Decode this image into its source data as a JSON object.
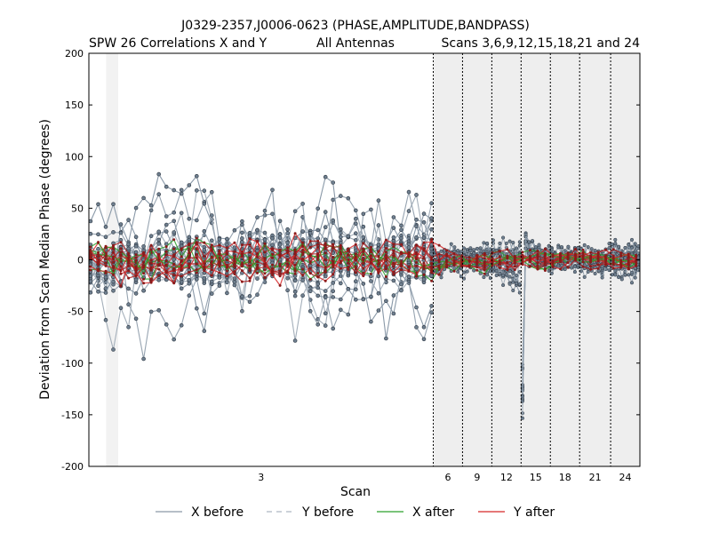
{
  "chart_data": {
    "type": "line",
    "title": "J0329-2357,J0006-0623 (PHASE,AMPLITUDE,BANDPASS)",
    "subtitle_left": "SPW 26 Correlations X and Y",
    "subtitle_center": "All Antennas",
    "subtitle_right": "Scans 3,6,9,12,15,18,21 and 24",
    "xlabel": "Scan",
    "ylabel": "Deviation from Scan Median Phase (degrees)",
    "ylim": [
      -200,
      200
    ],
    "yticks": [
      -200,
      -150,
      -100,
      -50,
      0,
      50,
      100,
      150,
      200
    ],
    "scans": [
      {
        "label": "3",
        "start": 0,
        "end": 100
      },
      {
        "label": "6",
        "start": 100,
        "end": 108.5
      },
      {
        "label": "9",
        "start": 108.5,
        "end": 117
      },
      {
        "label": "12",
        "start": 117,
        "end": 125.5
      },
      {
        "label": "15",
        "start": 125.5,
        "end": 134
      },
      {
        "label": "18",
        "start": 134,
        "end": 142.5
      },
      {
        "label": "21",
        "start": 142.5,
        "end": 151.5
      },
      {
        "label": "24",
        "start": 151.5,
        "end": 160
      }
    ],
    "flagged_region": [
      5,
      8.5
    ],
    "legend": {
      "placement": "bottom",
      "entries": [
        {
          "name": "X before",
          "color": "#8a99a8",
          "style": "solid"
        },
        {
          "name": "Y before",
          "color": "#aeb8c2",
          "style": "dashed"
        },
        {
          "name": "X after",
          "color": "#2ca02c",
          "style": "solid"
        },
        {
          "name": "Y after",
          "color": "#d62728",
          "style": "solid"
        }
      ]
    },
    "shading_color": "#eeeeee",
    "grid": false
  }
}
